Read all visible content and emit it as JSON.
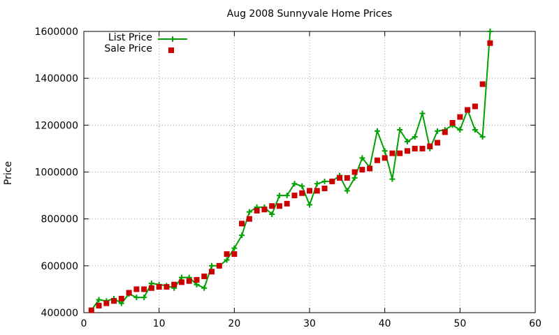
{
  "chart_data": {
    "type": "line",
    "title": "Aug 2008 Sunnyvale Home Prices",
    "xlabel": "",
    "ylabel": "Price",
    "xlim": [
      0,
      60
    ],
    "ylim": [
      400000,
      1600000
    ],
    "xticks": [
      0,
      10,
      20,
      30,
      40,
      50,
      60
    ],
    "yticks": [
      400000,
      600000,
      800000,
      1000000,
      1200000,
      1400000,
      1600000
    ],
    "xtick_labels": [
      "0",
      "10",
      "20",
      "30",
      "40",
      "50",
      "60"
    ],
    "ytick_labels": [
      "400000",
      "600000",
      "800000",
      "1000000",
      "1200000",
      "1400000",
      "1600000"
    ],
    "grid": true,
    "legend_position": "top-left",
    "x": [
      1,
      2,
      3,
      4,
      5,
      6,
      7,
      8,
      9,
      10,
      11,
      12,
      13,
      14,
      15,
      16,
      17,
      18,
      19,
      20,
      21,
      22,
      23,
      24,
      25,
      26,
      27,
      28,
      29,
      30,
      31,
      32,
      33,
      34,
      35,
      36,
      37,
      38,
      39,
      40,
      41,
      42,
      43,
      44,
      45,
      46,
      47,
      48,
      49,
      50,
      51,
      52,
      53,
      54
    ],
    "series": [
      {
        "name": "List Price",
        "style": "linespoints",
        "color": "#00a000",
        "values": [
          410000,
          455000,
          450000,
          460000,
          440000,
          480000,
          465000,
          465000,
          525000,
          520000,
          515000,
          505000,
          550000,
          550000,
          520000,
          505000,
          600000,
          600000,
          625000,
          675000,
          730000,
          830000,
          850000,
          850000,
          820000,
          900000,
          900000,
          950000,
          940000,
          860000,
          950000,
          960000,
          960000,
          985000,
          920000,
          975000,
          1060000,
          1020000,
          1175000,
          1090000,
          970000,
          1180000,
          1130000,
          1150000,
          1250000,
          1100000,
          1175000,
          1180000,
          1200000,
          1180000,
          1265000,
          1180000,
          1150000,
          1600000
        ]
      },
      {
        "name": "Sale Price",
        "style": "points",
        "color": "#cc0000",
        "values": [
          410000,
          430000,
          440000,
          450000,
          460000,
          485000,
          500000,
          500000,
          505000,
          510000,
          510000,
          520000,
          530000,
          535000,
          540000,
          555000,
          575000,
          600000,
          650000,
          650000,
          780000,
          800000,
          835000,
          840000,
          855000,
          855000,
          865000,
          900000,
          910000,
          920000,
          920000,
          930000,
          960000,
          975000,
          975000,
          1000000,
          1010000,
          1015000,
          1050000,
          1060000,
          1080000,
          1080000,
          1090000,
          1100000,
          1100000,
          1110000,
          1125000,
          1170000,
          1210000,
          1235000,
          1265000,
          1280000,
          1375000,
          1550000
        ]
      }
    ]
  }
}
